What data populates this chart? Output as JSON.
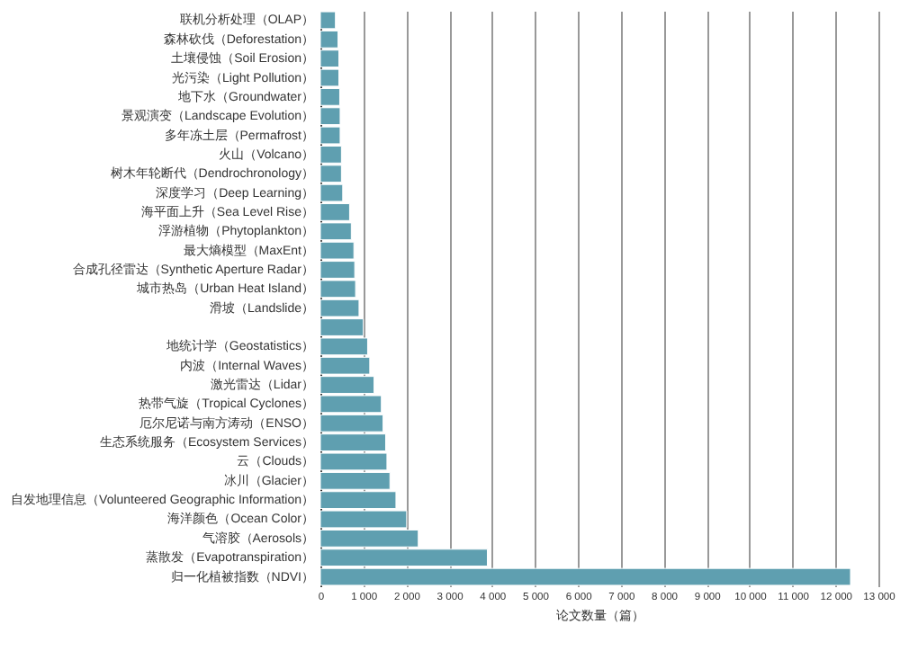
{
  "chart_data": {
    "type": "bar",
    "orientation": "horizontal",
    "xlabel": "论文数量（篇）",
    "categories": [
      "联机分析处理（OLAP）",
      "森林砍伐（Deforestation）",
      "土壤侵蚀（Soil Erosion）",
      "光污染（Light Pollution）",
      "地下水（Groundwater）",
      "景观演变（Landscape Evolution）",
      "多年冻土层（Permafrost）",
      "火山（Volcano）",
      "树木年轮断代（Dendrochronology）",
      "深度学习（Deep Learning）",
      "海平面上升（Sea Level Rise）",
      "浮游植物（Phytoplankton）",
      "最大熵模型（MaxEnt）",
      "合成孔径雷达（Synthetic Aperture Radar）",
      "城市热岛（Urban Heat Island）",
      "滑坡（Landslide）",
      null,
      "地统计学（Geostatistics）",
      "内波（Internal Waves）",
      "激光雷达（Lidar）",
      "热带气旋（Tropical Cyclones）",
      "厄尔尼诺与南方涛动（ENSO）",
      "生态系统服务（Ecosystem Services）",
      "云（Clouds）",
      "冰川（Glacier）",
      "自发地理信息（Volunteered Geographic Information）",
      "海洋颜色（Ocean Color）",
      "气溶胶（Aerosols）",
      "蒸散发（Evapotranspiration）",
      "归一化植被指数（NDVI）"
    ],
    "values": [
      350,
      410,
      430,
      430,
      450,
      460,
      460,
      490,
      490,
      520,
      680,
      720,
      780,
      800,
      820,
      900,
      1000,
      1100,
      1150,
      1250,
      1420,
      1460,
      1520,
      1550,
      1620,
      1760,
      2010,
      2280,
      3890,
      12350
    ],
    "color": "#5f9fb0",
    "xlim": [
      0,
      13000
    ],
    "xticks": [
      0,
      {
        "value": 1000,
        "label": "1 000"
      },
      {
        "value": 2000,
        "label": "2 000"
      },
      {
        "value": 3000,
        "label": "3 000"
      },
      {
        "value": 4000,
        "label": "4 000"
      },
      {
        "value": 5000,
        "label": "5 000"
      },
      {
        "value": 6000,
        "label": "6 000"
      },
      {
        "value": 7000,
        "label": "7 000"
      },
      {
        "value": 8000,
        "label": "8 000"
      },
      {
        "value": 9000,
        "label": "9 000"
      },
      {
        "value": 10000,
        "label": "10 000"
      },
      {
        "value": 11000,
        "label": "11 000"
      },
      {
        "value": 12000,
        "label": "12 000"
      },
      {
        "value": 13000,
        "label": "13 000"
      }
    ],
    "grid": "x"
  }
}
